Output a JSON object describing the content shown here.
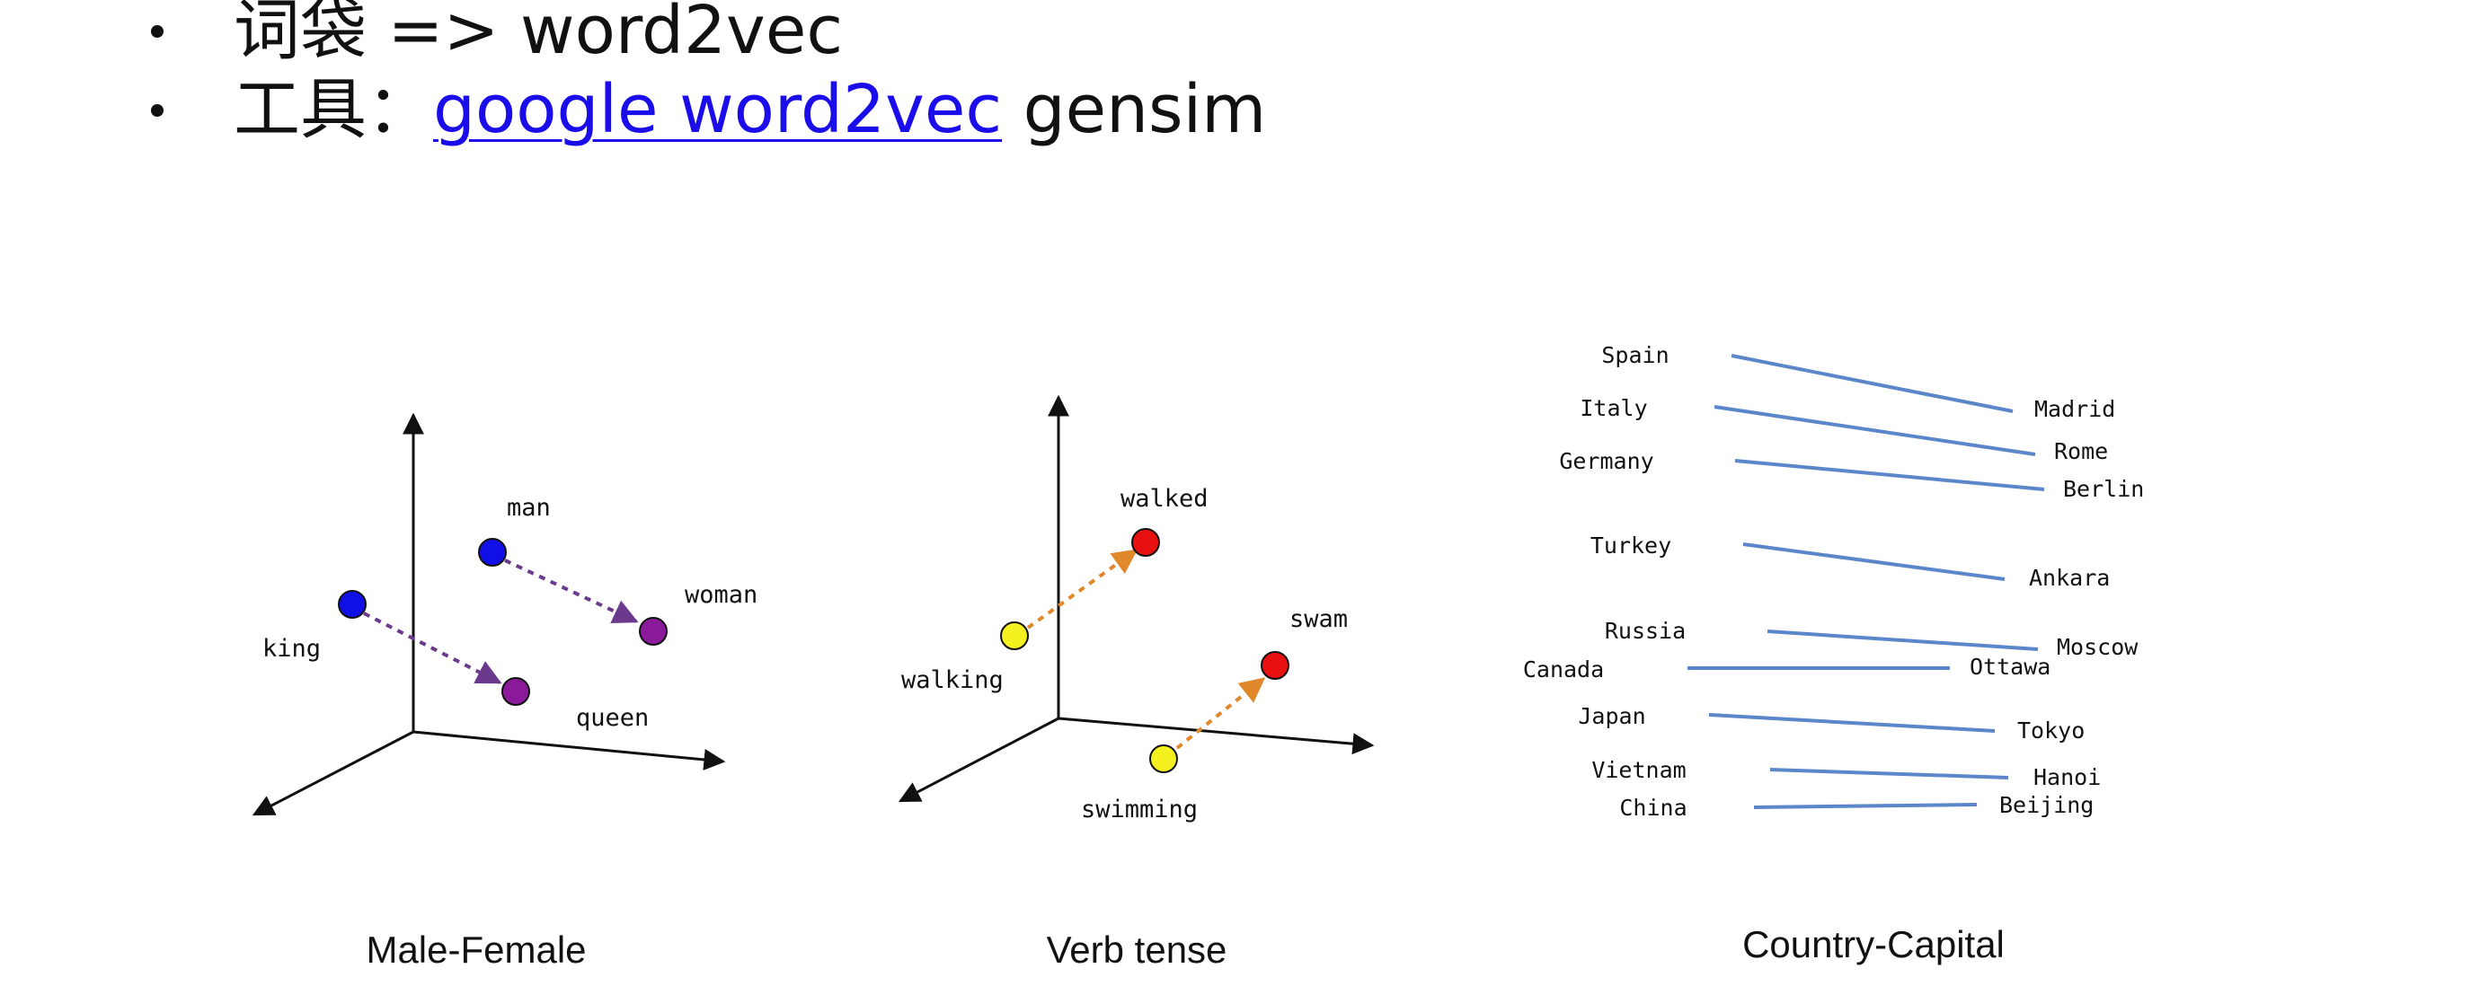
{
  "bullets": [
    {
      "prefix": "词袋 => word2vec",
      "link": "",
      "suffix": ""
    },
    {
      "prefix": "工具：",
      "link": "google word2vec",
      "suffix": " gensim"
    }
  ],
  "panels": {
    "male_female": {
      "caption": "Male-Female",
      "labels": {
        "man": "man",
        "king": "king",
        "woman": "woman",
        "queen": "queen"
      }
    },
    "verb_tense": {
      "caption": "Verb tense",
      "labels": {
        "walked": "walked",
        "walking": "walking",
        "swam": "swam",
        "swimming": "swimming"
      }
    },
    "country_capital": {
      "caption": "Country-Capital",
      "pairs": [
        {
          "country": "Spain",
          "capital": "Madrid"
        },
        {
          "country": "Italy",
          "capital": "Rome"
        },
        {
          "country": "Germany",
          "capital": "Berlin"
        },
        {
          "country": "Turkey",
          "capital": "Ankara"
        },
        {
          "country": "Russia",
          "capital": "Moscow"
        },
        {
          "country": "Canada",
          "capital": "Ottawa"
        },
        {
          "country": "Japan",
          "capital": "Tokyo"
        },
        {
          "country": "Vietnam",
          "capital": "Hanoi"
        },
        {
          "country": "China",
          "capital": "Beijing"
        }
      ]
    }
  },
  "colors": {
    "blue_point": "#1010e6",
    "purple_point": "#8b1a9b",
    "purple_arrow": "#6b3a8c",
    "yellow_point": "#f5f020",
    "red_point": "#e81010",
    "orange_arrow": "#e0882a",
    "country_line": "#5b86c9",
    "link": "#1a0dea"
  }
}
